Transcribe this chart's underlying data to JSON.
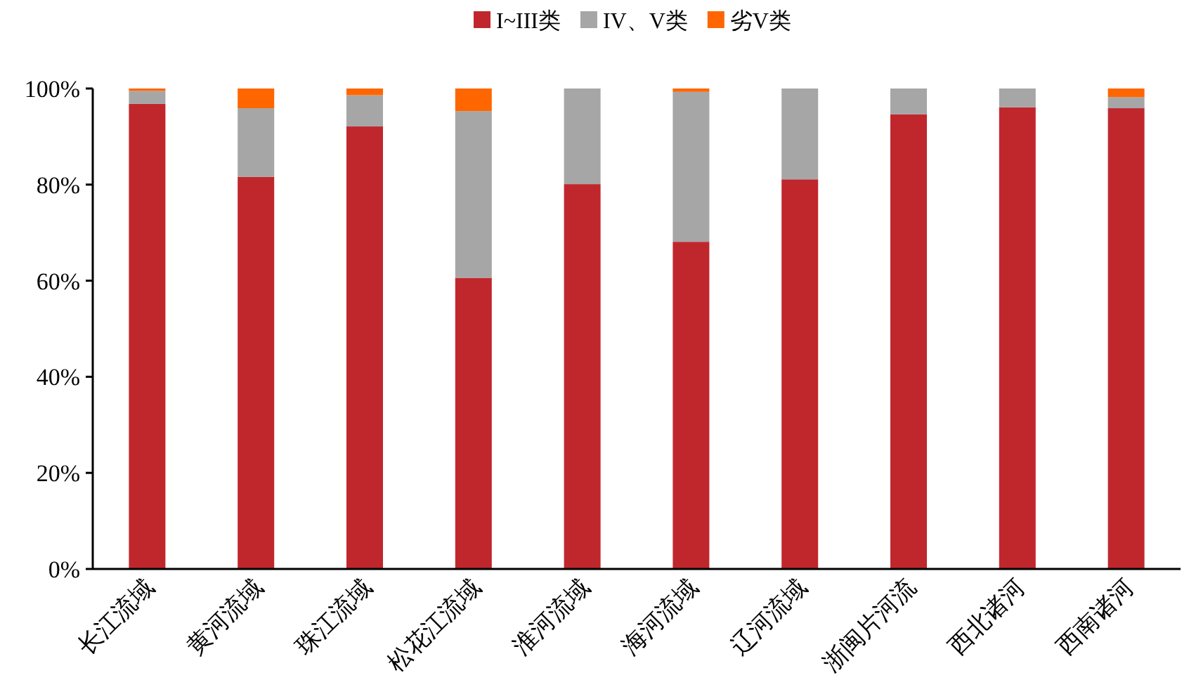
{
  "chart_data": {
    "type": "bar",
    "stacked": true,
    "legend": "top",
    "categories": [
      "长江流域",
      "黄河流域",
      "珠江流域",
      "松花江流域",
      "淮河流域",
      "海河流域",
      "辽河流域",
      "浙闽片河流",
      "西北诸河",
      "西南诸河"
    ],
    "series": [
      {
        "name": "I~III类",
        "color": "#c0272d",
        "values": [
          96.8,
          81.6,
          92.1,
          60.6,
          80.1,
          68.1,
          81.1,
          94.6,
          96.1,
          95.9
        ]
      },
      {
        "name": "IV、V类",
        "color": "#a6a6a6",
        "values": [
          2.7,
          14.3,
          6.5,
          34.7,
          19.9,
          31.2,
          18.9,
          5.4,
          3.9,
          2.3
        ]
      },
      {
        "name": "劣V类",
        "color": "#ff6600",
        "values": [
          0.5,
          4.1,
          1.4,
          4.7,
          0,
          0.7,
          0,
          0,
          0,
          1.8
        ]
      }
    ],
    "ylim": [
      0,
      100
    ],
    "yticks": [
      {
        "value": 0,
        "label": "0%"
      },
      {
        "value": 20,
        "label": "20%"
      },
      {
        "value": 40,
        "label": "40%"
      },
      {
        "value": 60,
        "label": "60%"
      },
      {
        "value": 80,
        "label": "80%"
      },
      {
        "value": 100,
        "label": "100%"
      }
    ]
  }
}
